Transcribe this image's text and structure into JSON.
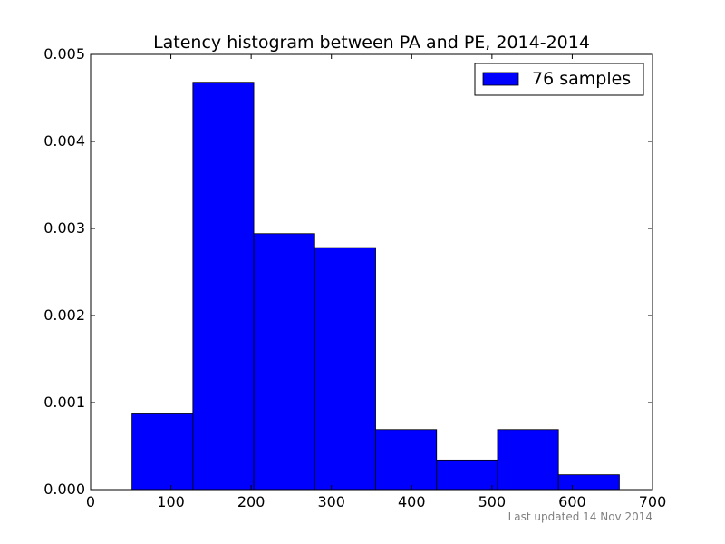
{
  "chart_data": {
    "type": "bar",
    "title": "Latency histogram between PA and PE, 2014-2014",
    "xlabel": "",
    "ylabel": "",
    "xlim": [
      0,
      700
    ],
    "ylim": [
      0,
      0.005
    ],
    "x_ticks": [
      "0",
      "100",
      "200",
      "300",
      "400",
      "500",
      "600",
      "700"
    ],
    "y_ticks": [
      "0.000",
      "0.001",
      "0.002",
      "0.003",
      "0.004",
      "0.005"
    ],
    "grid": false,
    "legend": {
      "placement": "top-right",
      "entries": [
        "76 samples"
      ]
    },
    "bin_edges": [
      51.5,
      127.4,
      203.3,
      279.2,
      355.1,
      431,
      506.9,
      582.8,
      658.7
    ],
    "series": [
      {
        "name": "76 samples",
        "color": "#0000ff",
        "values": [
          0.00087,
          0.00468,
          0.00294,
          0.00278,
          0.00069,
          0.00034,
          0.00069,
          0.00017
        ]
      }
    ]
  },
  "footnote": "Last updated 14 Nov 2014"
}
